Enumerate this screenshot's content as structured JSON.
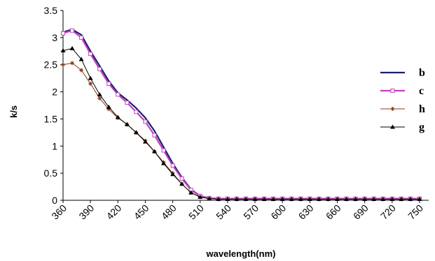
{
  "chart_data": {
    "type": "line",
    "title": "",
    "xlabel": "wavelength(nm)",
    "ylabel": "k/s",
    "xlim": [
      360,
      760
    ],
    "ylim": [
      0,
      3.5
    ],
    "x_ticks": [
      360,
      390,
      420,
      450,
      480,
      510,
      540,
      570,
      600,
      630,
      660,
      690,
      720,
      750
    ],
    "x_tick_labels": [
      "360",
      "390",
      "420",
      "450",
      "480",
      "510",
      "540",
      "570",
      "600",
      "630",
      "660",
      "690",
      "720",
      "750"
    ],
    "y_ticks": [
      0,
      0.5,
      1,
      1.5,
      2,
      2.5,
      3,
      3.5
    ],
    "y_tick_labels": [
      "0",
      "0.5",
      "1",
      "1.5",
      "2",
      "2.5",
      "3",
      "3.5"
    ],
    "grid": false,
    "legend_position": "right",
    "x": [
      360,
      370,
      380,
      390,
      400,
      410,
      420,
      430,
      440,
      450,
      460,
      470,
      480,
      490,
      500,
      510,
      520,
      530,
      540,
      550,
      560,
      570,
      580,
      590,
      600,
      610,
      620,
      630,
      640,
      650,
      660,
      670,
      680,
      690,
      700,
      710,
      720,
      730,
      740,
      750
    ],
    "series": [
      {
        "name": "b",
        "color": "#1a1f6e",
        "marker": "none",
        "values": [
          3.1,
          3.15,
          3.05,
          2.75,
          2.48,
          2.2,
          1.98,
          1.85,
          1.7,
          1.52,
          1.28,
          0.98,
          0.68,
          0.42,
          0.2,
          0.08,
          0.04,
          0.03,
          0.03,
          0.03,
          0.03,
          0.03,
          0.03,
          0.03,
          0.03,
          0.03,
          0.03,
          0.03,
          0.03,
          0.03,
          0.03,
          0.03,
          0.03,
          0.03,
          0.03,
          0.03,
          0.03,
          0.03,
          0.03,
          0.03
        ]
      },
      {
        "name": "c",
        "color": "#c040c0",
        "marker": "square",
        "values": [
          3.08,
          3.13,
          3.0,
          2.7,
          2.42,
          2.15,
          1.95,
          1.8,
          1.63,
          1.45,
          1.2,
          0.92,
          0.64,
          0.4,
          0.19,
          0.08,
          0.04,
          0.03,
          0.03,
          0.03,
          0.03,
          0.03,
          0.03,
          0.03,
          0.03,
          0.03,
          0.03,
          0.03,
          0.03,
          0.03,
          0.03,
          0.03,
          0.03,
          0.03,
          0.03,
          0.03,
          0.03,
          0.03,
          0.03,
          0.03
        ]
      },
      {
        "name": "h",
        "color": "#8b3a1a",
        "marker": "star",
        "values": [
          2.5,
          2.53,
          2.4,
          2.15,
          1.88,
          1.68,
          1.52,
          1.4,
          1.25,
          1.1,
          0.9,
          0.7,
          0.5,
          0.3,
          0.14,
          0.06,
          0.03,
          0.02,
          0.02,
          0.02,
          0.02,
          0.02,
          0.02,
          0.02,
          0.02,
          0.02,
          0.02,
          0.02,
          0.02,
          0.02,
          0.02,
          0.02,
          0.02,
          0.02,
          0.02,
          0.02,
          0.02,
          0.02,
          0.02,
          0.02
        ]
      },
      {
        "name": "g",
        "color": "#000000",
        "marker": "triangle",
        "values": [
          2.76,
          2.8,
          2.6,
          2.25,
          1.95,
          1.72,
          1.53,
          1.4,
          1.25,
          1.08,
          0.9,
          0.68,
          0.48,
          0.3,
          0.14,
          0.06,
          0.03,
          0.02,
          0.02,
          0.02,
          0.02,
          0.02,
          0.02,
          0.02,
          0.02,
          0.02,
          0.02,
          0.02,
          0.02,
          0.02,
          0.02,
          0.02,
          0.02,
          0.02,
          0.02,
          0.02,
          0.02,
          0.02,
          0.02,
          0.02
        ]
      }
    ]
  }
}
